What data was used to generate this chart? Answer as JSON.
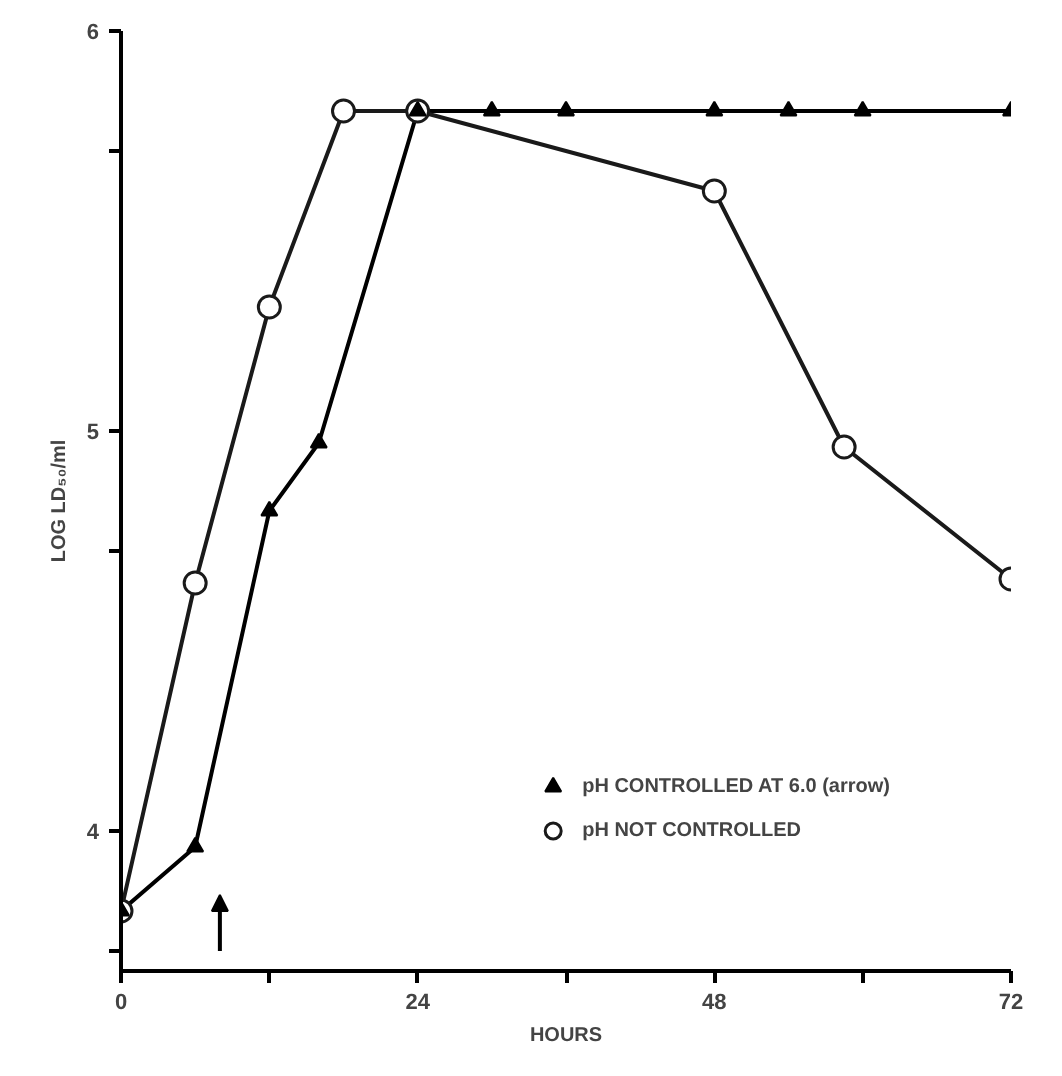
{
  "chart_data": {
    "type": "line",
    "xlabel": "HOURS",
    "ylabel": "LOG LD₅₀/ml",
    "xlim": [
      0,
      72
    ],
    "ylim": [
      3.65,
      6
    ],
    "xticks": [
      0,
      {
        "value": 12,
        "label": null
      },
      24,
      {
        "value": 36,
        "label": null
      },
      48,
      {
        "value": 60,
        "label": null
      },
      72
    ],
    "yticks": [
      {
        "value": 3.7,
        "label": null
      },
      4,
      {
        "value": 4.7,
        "label": null
      },
      5,
      {
        "value": 5.7,
        "label": null
      },
      6
    ],
    "grid": false,
    "legend": "bottom right",
    "series": [
      {
        "name": "pH CONTROLLED AT 6.0 (arrow)",
        "color": "#000000",
        "marker": "triangle",
        "x": [
          0,
          6,
          12,
          16,
          24,
          30,
          36,
          48,
          54,
          60,
          72
        ],
        "values": [
          3.8,
          3.96,
          4.8,
          4.97,
          5.8,
          5.8,
          5.8,
          5.8,
          5.8,
          5.8,
          5.8
        ]
      },
      {
        "name": "pH NOT CONTROLLED",
        "color": "#1a1a1a",
        "marker": "circle",
        "x": [
          0,
          6,
          12,
          18,
          24,
          48,
          58.5,
          72
        ],
        "values": [
          3.8,
          4.62,
          5.31,
          5.8,
          5.8,
          5.6,
          4.96,
          4.63
        ]
      }
    ]
  }
}
